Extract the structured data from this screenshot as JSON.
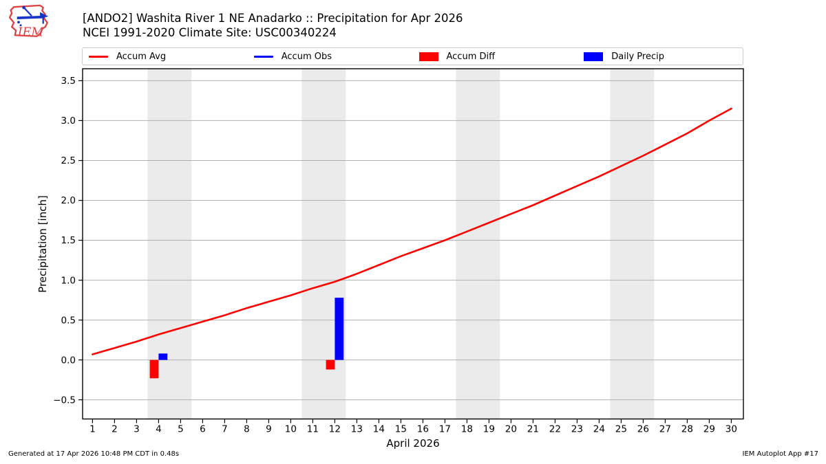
{
  "header": {
    "title_line1": "[ANDO2] Washita River 1 NE Anadarko :: Precipitation for Apr 2026",
    "title_line2": "NCEI 1991-2020 Climate Site: USC00340224",
    "logo_text": "IEM"
  },
  "legend": {
    "items": [
      {
        "label": "Accum Avg",
        "swatch": "line",
        "color": "#ff0000"
      },
      {
        "label": "Accum Obs",
        "swatch": "line",
        "color": "#0000ff"
      },
      {
        "label": "Accum Diff",
        "swatch": "box",
        "color": "#ff0000"
      },
      {
        "label": "Daily Precip",
        "swatch": "box",
        "color": "#0000ff"
      }
    ]
  },
  "footer": {
    "left": "Generated at 17 Apr 2026 10:48 PM CDT in 0.48s",
    "right": "IEM Autoplot App #17"
  },
  "chart_data": {
    "type": "line+bar",
    "title": "[ANDO2] Washita River 1 NE Anadarko :: Precipitation for Apr 2026",
    "subtitle": "NCEI 1991-2020 Climate Site: USC00340224",
    "xlabel": "April 2026",
    "ylabel": "Precipitation [inch]",
    "xlim": [
      0.55,
      30.55
    ],
    "ylim": [
      -0.74,
      3.65
    ],
    "xticks": [
      1,
      2,
      3,
      4,
      5,
      6,
      7,
      8,
      9,
      10,
      11,
      12,
      13,
      14,
      15,
      16,
      17,
      18,
      19,
      20,
      21,
      22,
      23,
      24,
      25,
      26,
      27,
      28,
      29,
      30
    ],
    "yticks": [
      -0.5,
      0.0,
      0.5,
      1.0,
      1.5,
      2.0,
      2.5,
      3.0,
      3.5
    ],
    "grid": true,
    "legend_position": "top",
    "weekend_bands": [
      [
        3.5,
        5.5
      ],
      [
        10.5,
        12.5
      ],
      [
        17.5,
        19.5
      ],
      [
        24.5,
        26.5
      ]
    ],
    "colors": {
      "band": "#ebebeb",
      "grid": "#b0b0b0",
      "spine": "#000000"
    },
    "series": [
      {
        "name": "Accum Avg",
        "type": "line",
        "color": "#ff0000",
        "x": [
          1,
          2,
          3,
          4,
          5,
          6,
          7,
          8,
          9,
          10,
          11,
          12,
          13,
          14,
          15,
          16,
          17,
          18,
          19,
          20,
          21,
          22,
          23,
          24,
          25,
          26,
          27,
          28,
          29,
          30
        ],
        "y": [
          0.07,
          0.15,
          0.23,
          0.32,
          0.4,
          0.48,
          0.56,
          0.65,
          0.73,
          0.81,
          0.9,
          0.98,
          1.08,
          1.19,
          1.3,
          1.4,
          1.5,
          1.61,
          1.72,
          1.83,
          1.94,
          2.06,
          2.18,
          2.3,
          2.43,
          2.56,
          2.7,
          2.84,
          3.0,
          3.15
        ]
      },
      {
        "name": "Accum Obs",
        "type": "line",
        "color": "#0000ff",
        "x": [],
        "y": []
      },
      {
        "name": "Accum Diff",
        "type": "bar",
        "color": "#ff0000",
        "x": [
          4,
          12
        ],
        "y": [
          -0.23,
          -0.12
        ]
      },
      {
        "name": "Daily Precip",
        "type": "bar",
        "color": "#0000ff",
        "x": [
          4,
          12
        ],
        "y": [
          0.08,
          0.78
        ]
      }
    ]
  }
}
